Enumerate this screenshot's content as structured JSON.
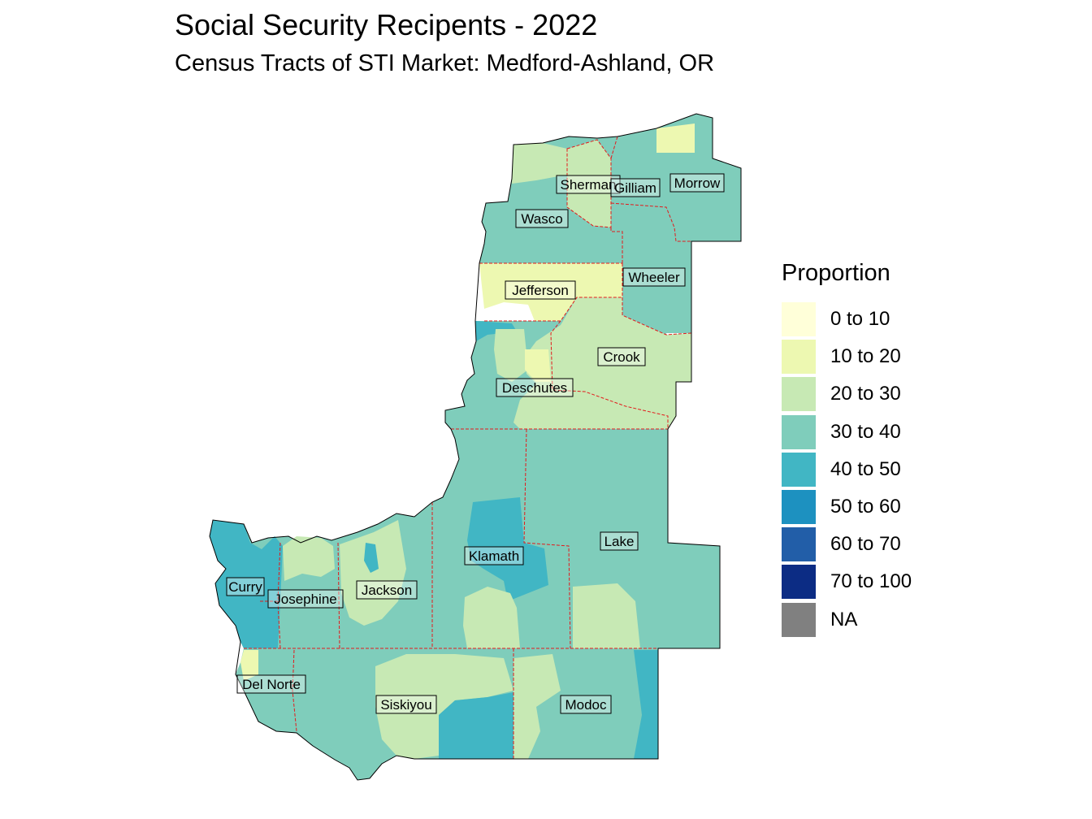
{
  "title": "Social Security Recipents - 2022",
  "subtitle": "Census Tracts of STI Market: Medford-Ashland, OR",
  "legend": {
    "title": "Proportion",
    "items": [
      {
        "label": "0 to 10",
        "color": "#ffffd9"
      },
      {
        "label": "10 to 20",
        "color": "#edf8b1"
      },
      {
        "label": "20 to 30",
        "color": "#c7e9b4"
      },
      {
        "label": "30 to 40",
        "color": "#7fcdbb"
      },
      {
        "label": "40 to 50",
        "color": "#41b6c4"
      },
      {
        "label": "50 to 60",
        "color": "#1d91c0"
      },
      {
        "label": "60 to 70",
        "color": "#225ea8"
      },
      {
        "label": "70 to 100",
        "color": "#0c2c84"
      },
      {
        "label": "NA",
        "color": "#808080"
      }
    ]
  },
  "counties": {
    "sherman": "Sherman",
    "gilliam": "Gilliam",
    "morrow": "Morrow",
    "wasco": "Wasco",
    "wheeler": "Wheeler",
    "jefferson": "Jefferson",
    "crook": "Crook",
    "deschutes": "Deschutes",
    "lake": "Lake",
    "klamath": "Klamath",
    "curry": "Curry",
    "josephine": "Josephine",
    "jackson": "Jackson",
    "del_norte": "Del Norte",
    "siskiyou": "Siskiyou",
    "modoc": "Modoc"
  }
}
